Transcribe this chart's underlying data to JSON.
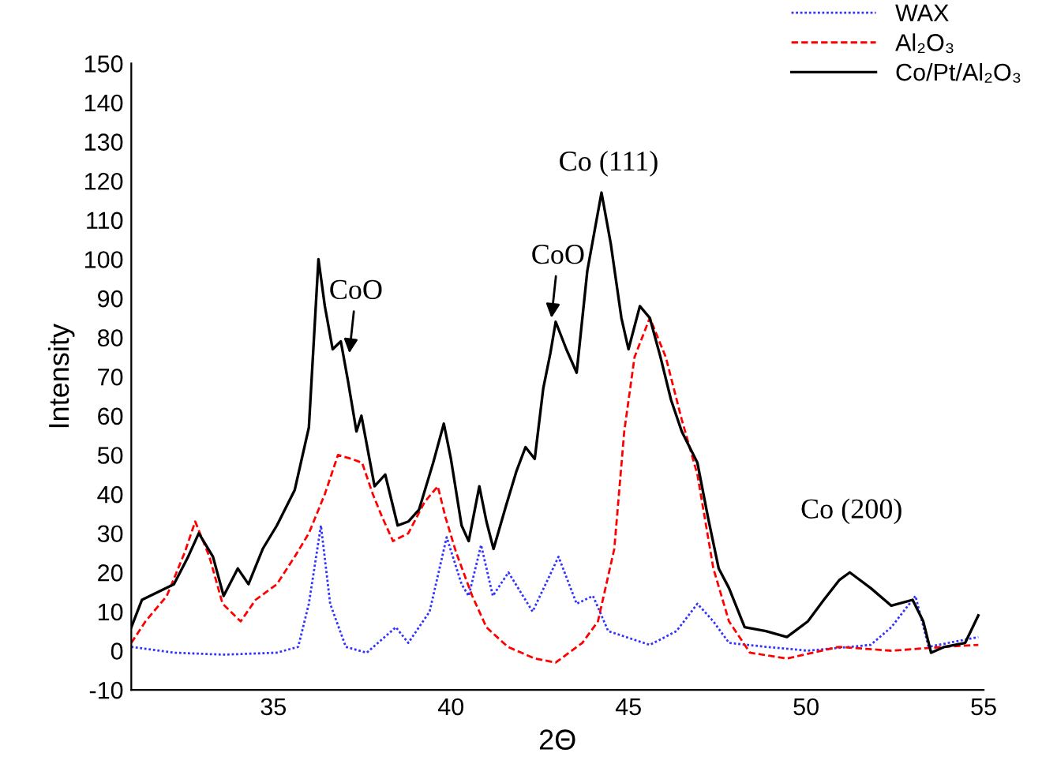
{
  "chart_data": {
    "type": "line",
    "xlabel": "2Θ",
    "ylabel": "Intensity",
    "xlim": [
      31,
      55
    ],
    "xticks": [
      35,
      40,
      45,
      50,
      55
    ],
    "ylim": [
      -10,
      150
    ],
    "yticks": [
      -10,
      0,
      10,
      20,
      30,
      40,
      50,
      60,
      70,
      80,
      90,
      100,
      110,
      120,
      130,
      140,
      150
    ],
    "grid": false,
    "legend": "top right",
    "marker": "none",
    "annotations": [
      {
        "text": "CoO",
        "x": 37.14,
        "y": 76
      },
      {
        "text": "CoO",
        "x": 42.83,
        "y": 85
      },
      "Co (111)",
      "Co (200)"
    ],
    "series": [
      {
        "name": "WAX",
        "color": "#3333ff",
        "line_style": "dotted",
        "x": [
          31.0,
          32.2,
          33.6,
          35.1,
          35.7,
          36.0,
          36.34,
          36.6,
          37.04,
          37.63,
          38.45,
          38.8,
          39.4,
          39.88,
          40.3,
          40.5,
          40.85,
          41.18,
          41.62,
          42.3,
          43.03,
          43.54,
          44.0,
          44.43,
          45.6,
          46.35,
          46.94,
          47.39,
          47.83,
          48.87,
          50.05,
          51.82,
          52.4,
          53.08,
          53.45,
          54.85
        ],
        "values": [
          1,
          -0.5,
          -1,
          -0.5,
          1,
          12,
          32,
          12,
          1,
          -0.5,
          6,
          2,
          10,
          29,
          17,
          14,
          27,
          14,
          20,
          10,
          24,
          12,
          14,
          5,
          1.5,
          5,
          12,
          7.5,
          2,
          1,
          0,
          1.5,
          6,
          14,
          1,
          3.5
        ]
      },
      {
        "name": "Al₂O₃",
        "color": "#ff0000",
        "line_style": "dashed",
        "x": [
          31.0,
          31.4,
          32.0,
          32.5,
          32.8,
          33.2,
          33.57,
          34.08,
          34.5,
          35.1,
          35.6,
          36.0,
          36.45,
          36.82,
          37.2,
          37.5,
          37.8,
          38.07,
          38.37,
          38.8,
          39.26,
          39.63,
          39.85,
          40.15,
          40.6,
          41.0,
          41.6,
          42.36,
          42.95,
          43.7,
          44.14,
          44.6,
          44.88,
          45.17,
          45.6,
          46.05,
          46.5,
          46.94,
          47.39,
          47.83,
          48.42,
          49.46,
          50.93,
          52.4,
          53.9,
          54.85
        ],
        "values": [
          2,
          7.5,
          14,
          25,
          33,
          24,
          12,
          7.5,
          13,
          17,
          24,
          30,
          40,
          50,
          49,
          48,
          40,
          34,
          28,
          30,
          38,
          42,
          34,
          25,
          14,
          6,
          1,
          -2,
          -3,
          2,
          7.5,
          26,
          56,
          75,
          85,
          75,
          59,
          45,
          21,
          7.5,
          -0.5,
          -2,
          1,
          0,
          1,
          1.5
        ]
      },
      {
        "name": "Co/Pt/Al₂O₃",
        "color": "#000000",
        "line_style": "solid",
        "x": [
          31.0,
          31.3,
          32.2,
          32.6,
          32.9,
          33.3,
          33.6,
          34.0,
          34.3,
          34.7,
          35.1,
          35.6,
          36.0,
          36.27,
          36.45,
          36.67,
          36.9,
          37.1,
          37.34,
          37.48,
          37.85,
          38.15,
          38.5,
          38.8,
          39.1,
          39.5,
          39.8,
          40.0,
          40.3,
          40.5,
          40.8,
          41.0,
          41.2,
          41.55,
          41.85,
          42.1,
          42.36,
          42.6,
          42.8,
          42.95,
          43.25,
          43.54,
          43.84,
          44.06,
          44.24,
          44.5,
          44.8,
          45.0,
          45.32,
          45.6,
          45.9,
          46.2,
          46.5,
          46.94,
          47.24,
          47.54,
          47.83,
          48.27,
          48.87,
          49.46,
          50.05,
          50.5,
          50.93,
          51.23,
          51.82,
          52.4,
          53.0,
          53.3,
          53.52,
          53.9,
          54.48,
          54.85
        ],
        "values": [
          6,
          13,
          17,
          24,
          30,
          24,
          14,
          21,
          17,
          26,
          32,
          41,
          57,
          100,
          88,
          77,
          79,
          69,
          56,
          60,
          42,
          45,
          32,
          33,
          36,
          48,
          58,
          49,
          32,
          28,
          42,
          33,
          26,
          37,
          46,
          52,
          49,
          67,
          76,
          84,
          77,
          71,
          97,
          108,
          117,
          104,
          85,
          77,
          88,
          85,
          75,
          64,
          56,
          48,
          34,
          21,
          16,
          6,
          5,
          3.5,
          7.5,
          13,
          18,
          20,
          16,
          11.5,
          13,
          7.5,
          -0.5,
          1,
          2,
          9
        ]
      }
    ]
  }
}
